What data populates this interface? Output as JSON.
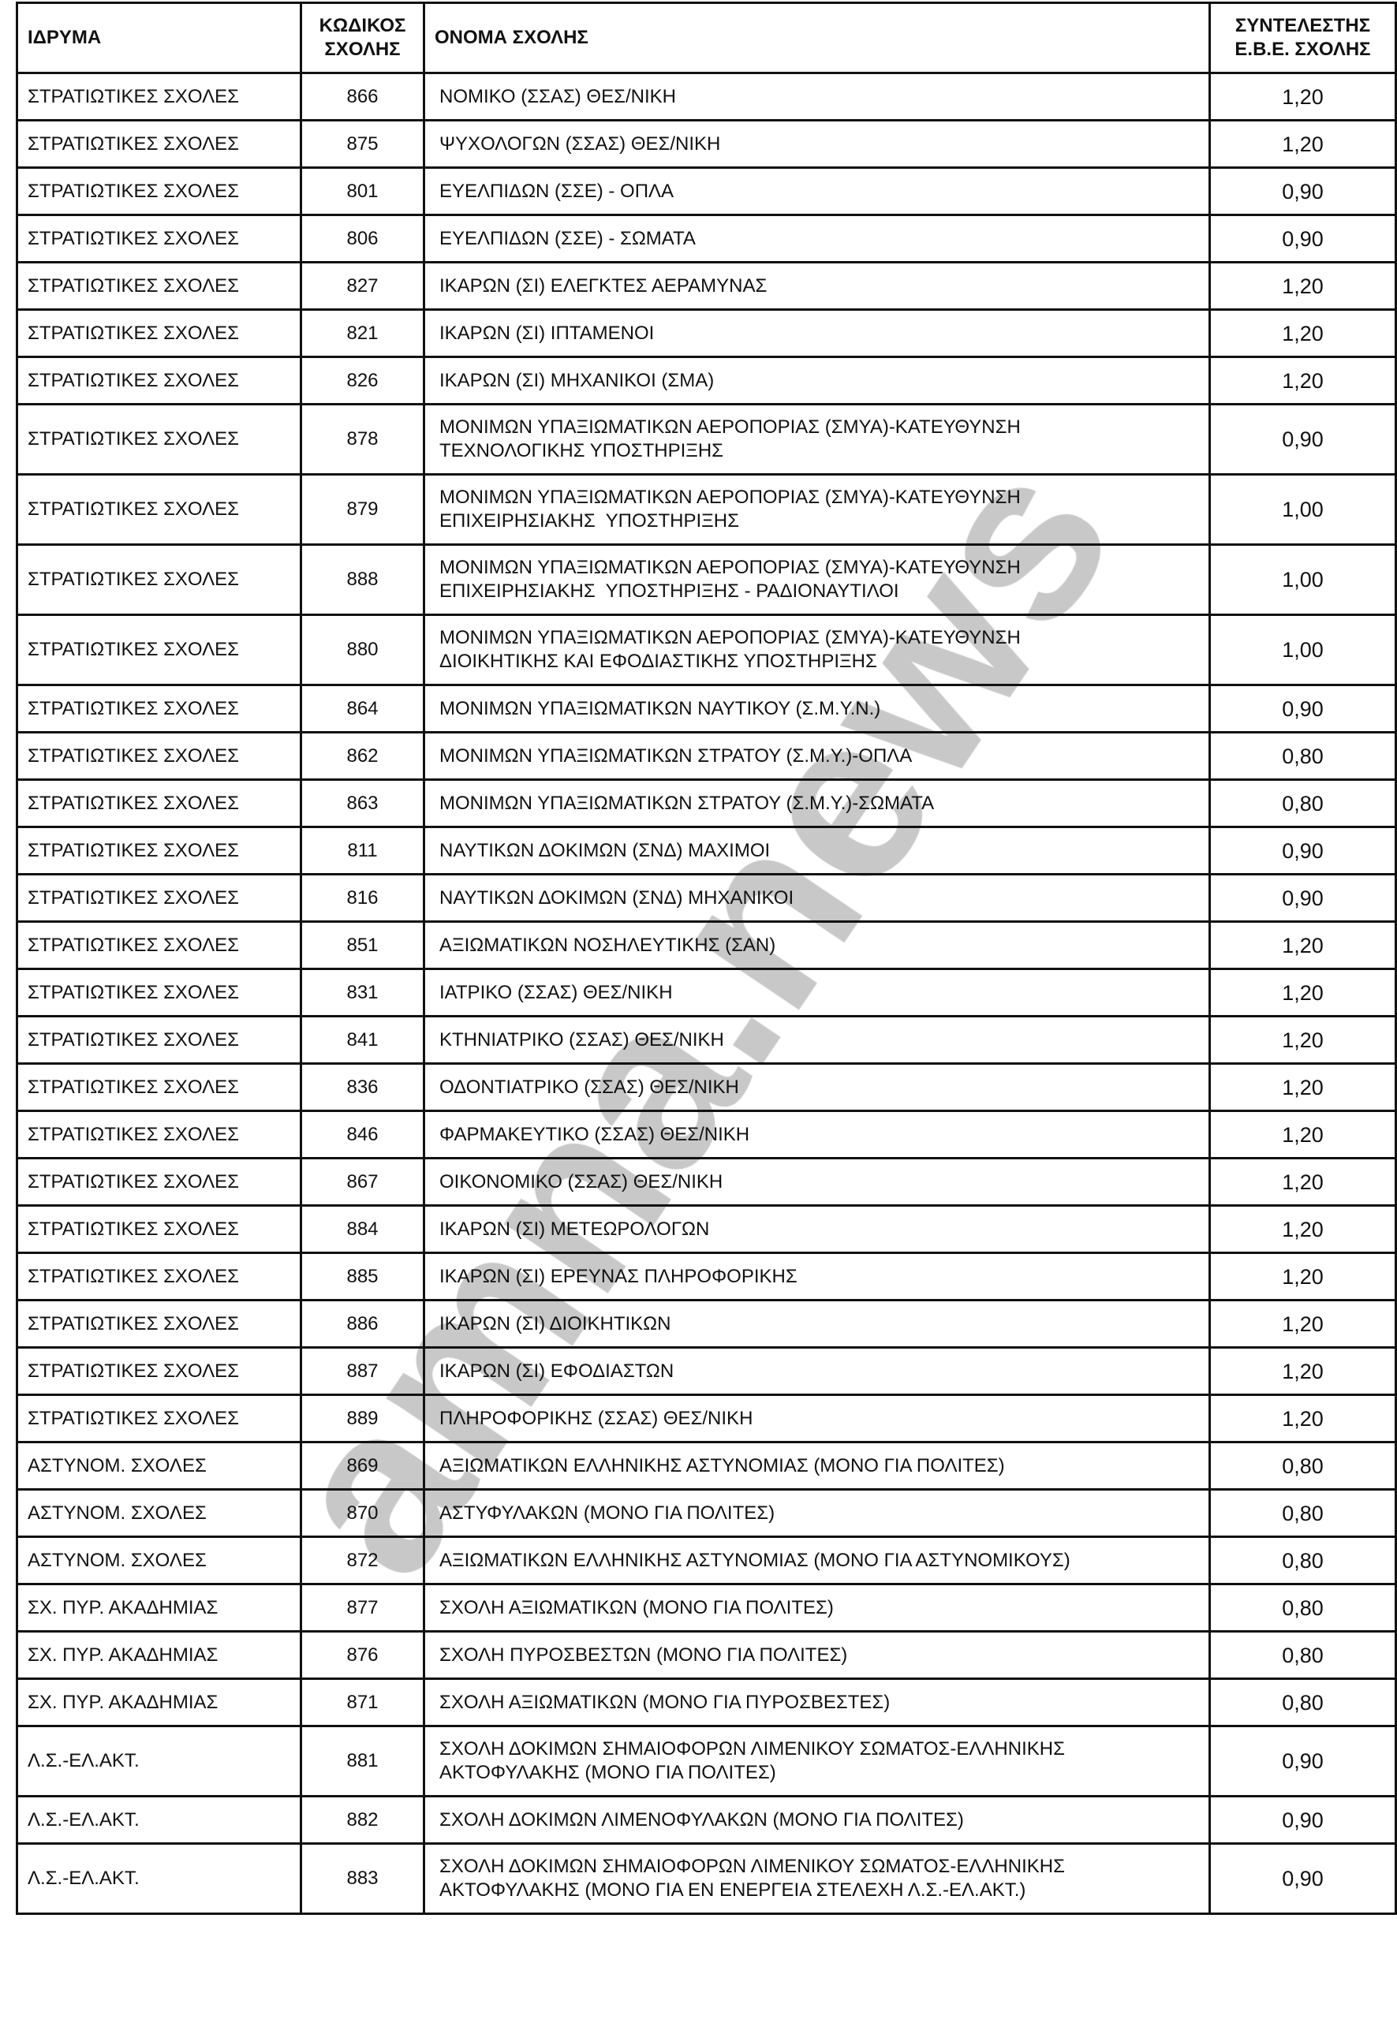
{
  "header": {
    "institution": "ΙΔΡΥΜΑ",
    "code_line1": "ΚΩΔΙΚΟΣ",
    "code_line2": "ΣΧΟΛΗΣ",
    "name": "ΟΝΟΜΑ ΣΧΟΛΗΣ",
    "coef_line1": "ΣΥΝΤΕΛΕΣΤΗΣ",
    "coef_line2": "Ε.Β.Ε. ΣΧΟΛΗΣ"
  },
  "watermark": "amna.news",
  "rows": [
    {
      "institution": "ΣΤΡΑΤΙΩΤΙΚΕΣ ΣΧΟΛΕΣ",
      "code": "866",
      "name": [
        "ΝΟΜΙΚΟ (ΣΣΑΣ) ΘΕΣ/ΝΙΚΗ"
      ],
      "coef": "1,20"
    },
    {
      "institution": "ΣΤΡΑΤΙΩΤΙΚΕΣ ΣΧΟΛΕΣ",
      "code": "875",
      "name": [
        "ΨΥΧΟΛΟΓΩΝ (ΣΣΑΣ) ΘΕΣ/ΝΙΚΗ"
      ],
      "coef": "1,20"
    },
    {
      "institution": "ΣΤΡΑΤΙΩΤΙΚΕΣ ΣΧΟΛΕΣ",
      "code": "801",
      "name": [
        "ΕΥΕΛΠΙΔΩΝ (ΣΣΕ) - ΟΠΛΑ"
      ],
      "coef": "0,90"
    },
    {
      "institution": "ΣΤΡΑΤΙΩΤΙΚΕΣ ΣΧΟΛΕΣ",
      "code": "806",
      "name": [
        "ΕΥΕΛΠΙΔΩΝ (ΣΣΕ) - ΣΩΜΑΤΑ"
      ],
      "coef": "0,90"
    },
    {
      "institution": "ΣΤΡΑΤΙΩΤΙΚΕΣ ΣΧΟΛΕΣ",
      "code": "827",
      "name": [
        "ΙΚΑΡΩΝ (ΣΙ) ΕΛΕΓΚΤΕΣ ΑΕΡΑΜΥΝΑΣ"
      ],
      "coef": "1,20"
    },
    {
      "institution": "ΣΤΡΑΤΙΩΤΙΚΕΣ ΣΧΟΛΕΣ",
      "code": "821",
      "name": [
        "ΙΚΑΡΩΝ (ΣΙ) ΙΠΤΑΜΕΝΟΙ"
      ],
      "coef": "1,20"
    },
    {
      "institution": "ΣΤΡΑΤΙΩΤΙΚΕΣ ΣΧΟΛΕΣ",
      "code": "826",
      "name": [
        "ΙΚΑΡΩΝ (ΣΙ) ΜΗΧΑΝΙΚΟΙ (ΣΜΑ)"
      ],
      "coef": "1,20"
    },
    {
      "institution": "ΣΤΡΑΤΙΩΤΙΚΕΣ ΣΧΟΛΕΣ",
      "code": "878",
      "name": [
        "ΜΟΝΙΜΩΝ ΥΠΑΞΙΩΜΑΤΙΚΩΝ ΑΕΡΟΠΟΡΙΑΣ (ΣΜΥΑ)-ΚΑΤΕΥΘΥΝΣΗ",
        "ΤΕΧΝΟΛΟΓΙΚΗΣ ΥΠΟΣΤΗΡΙΞΗΣ"
      ],
      "coef": "0,90"
    },
    {
      "institution": "ΣΤΡΑΤΙΩΤΙΚΕΣ ΣΧΟΛΕΣ",
      "code": "879",
      "name": [
        "ΜΟΝΙΜΩΝ ΥΠΑΞΙΩΜΑΤΙΚΩΝ ΑΕΡΟΠΟΡΙΑΣ (ΣΜΥΑ)-ΚΑΤΕΥΘΥΝΣΗ",
        "ΕΠΙΧΕΙΡΗΣΙΑΚΗΣ  ΥΠΟΣΤΗΡΙΞΗΣ"
      ],
      "coef": "1,00"
    },
    {
      "institution": "ΣΤΡΑΤΙΩΤΙΚΕΣ ΣΧΟΛΕΣ",
      "code": "888",
      "name": [
        "ΜΟΝΙΜΩΝ ΥΠΑΞΙΩΜΑΤΙΚΩΝ ΑΕΡΟΠΟΡΙΑΣ (ΣΜΥΑ)-ΚΑΤΕΥΘΥΝΣΗ",
        "ΕΠΙΧΕΙΡΗΣΙΑΚΗΣ  ΥΠΟΣΤΗΡΙΞΗΣ - ΡΑΔΙΟΝΑΥΤΙΛΟΙ"
      ],
      "coef": "1,00"
    },
    {
      "institution": "ΣΤΡΑΤΙΩΤΙΚΕΣ ΣΧΟΛΕΣ",
      "code": "880",
      "name": [
        "ΜΟΝΙΜΩΝ ΥΠΑΞΙΩΜΑΤΙΚΩΝ ΑΕΡΟΠΟΡΙΑΣ (ΣΜΥΑ)-ΚΑΤΕΥΘΥΝΣΗ",
        "ΔΙΟΙΚΗΤΙΚΗΣ ΚΑΙ ΕΦΟΔΙΑΣΤΙΚΗΣ ΥΠΟΣΤΗΡΙΞΗΣ"
      ],
      "coef": "1,00"
    },
    {
      "institution": "ΣΤΡΑΤΙΩΤΙΚΕΣ ΣΧΟΛΕΣ",
      "code": "864",
      "name": [
        "ΜΟΝΙΜΩΝ ΥΠΑΞΙΩΜΑΤΙΚΩΝ ΝΑΥΤΙΚΟΥ (Σ.Μ.Υ.Ν.)"
      ],
      "coef": "0,90"
    },
    {
      "institution": "ΣΤΡΑΤΙΩΤΙΚΕΣ ΣΧΟΛΕΣ",
      "code": "862",
      "name": [
        "ΜΟΝΙΜΩΝ ΥΠΑΞΙΩΜΑΤΙΚΩΝ ΣΤΡΑΤΟΥ (Σ.Μ.Υ.)-ΟΠΛΑ"
      ],
      "coef": "0,80"
    },
    {
      "institution": "ΣΤΡΑΤΙΩΤΙΚΕΣ ΣΧΟΛΕΣ",
      "code": "863",
      "name": [
        "ΜΟΝΙΜΩΝ ΥΠΑΞΙΩΜΑΤΙΚΩΝ ΣΤΡΑΤΟΥ (Σ.Μ.Υ.)-ΣΩΜΑΤΑ"
      ],
      "coef": "0,80"
    },
    {
      "institution": "ΣΤΡΑΤΙΩΤΙΚΕΣ ΣΧΟΛΕΣ",
      "code": "811",
      "name": [
        "ΝΑΥΤΙΚΩΝ ΔΟΚΙΜΩΝ (ΣΝΔ) ΜΑΧΙΜΟΙ"
      ],
      "coef": "0,90"
    },
    {
      "institution": "ΣΤΡΑΤΙΩΤΙΚΕΣ ΣΧΟΛΕΣ",
      "code": "816",
      "name": [
        "ΝΑΥΤΙΚΩΝ ΔΟΚΙΜΩΝ (ΣΝΔ) ΜΗΧΑΝΙΚΟΙ"
      ],
      "coef": "0,90"
    },
    {
      "institution": "ΣΤΡΑΤΙΩΤΙΚΕΣ ΣΧΟΛΕΣ",
      "code": "851",
      "name": [
        "ΑΞΙΩΜΑΤΙΚΩΝ ΝΟΣΗΛΕΥΤΙΚΗΣ (ΣΑΝ)"
      ],
      "coef": "1,20"
    },
    {
      "institution": "ΣΤΡΑΤΙΩΤΙΚΕΣ ΣΧΟΛΕΣ",
      "code": "831",
      "name": [
        "ΙΑΤΡΙΚΟ (ΣΣΑΣ) ΘΕΣ/ΝΙΚΗ"
      ],
      "coef": "1,20"
    },
    {
      "institution": "ΣΤΡΑΤΙΩΤΙΚΕΣ ΣΧΟΛΕΣ",
      "code": "841",
      "name": [
        "ΚΤΗΝΙΑΤΡΙΚΟ (ΣΣΑΣ) ΘΕΣ/ΝΙΚΗ"
      ],
      "coef": "1,20"
    },
    {
      "institution": "ΣΤΡΑΤΙΩΤΙΚΕΣ ΣΧΟΛΕΣ",
      "code": "836",
      "name": [
        "ΟΔΟΝΤΙΑΤΡΙΚΟ (ΣΣΑΣ) ΘΕΣ/ΝΙΚΗ"
      ],
      "coef": "1,20"
    },
    {
      "institution": "ΣΤΡΑΤΙΩΤΙΚΕΣ ΣΧΟΛΕΣ",
      "code": "846",
      "name": [
        "ΦΑΡΜΑΚΕΥΤΙΚΟ (ΣΣΑΣ) ΘΕΣ/ΝΙΚΗ"
      ],
      "coef": "1,20"
    },
    {
      "institution": "ΣΤΡΑΤΙΩΤΙΚΕΣ ΣΧΟΛΕΣ",
      "code": "867",
      "name": [
        "ΟΙΚΟΝΟΜΙΚΟ (ΣΣΑΣ) ΘΕΣ/ΝΙΚΗ"
      ],
      "coef": "1,20"
    },
    {
      "institution": "ΣΤΡΑΤΙΩΤΙΚΕΣ ΣΧΟΛΕΣ",
      "code": "884",
      "name": [
        "ΙΚΑΡΩΝ (ΣΙ) ΜΕΤΕΩΡΟΛΟΓΩΝ"
      ],
      "coef": "1,20"
    },
    {
      "institution": "ΣΤΡΑΤΙΩΤΙΚΕΣ ΣΧΟΛΕΣ",
      "code": "885",
      "name": [
        "ΙΚΑΡΩΝ (ΣΙ) ΕΡΕΥΝΑΣ ΠΛΗΡΟΦΟΡΙΚΗΣ"
      ],
      "coef": "1,20"
    },
    {
      "institution": "ΣΤΡΑΤΙΩΤΙΚΕΣ ΣΧΟΛΕΣ",
      "code": "886",
      "name": [
        "ΙΚΑΡΩΝ (ΣΙ) ΔΙΟΙΚΗΤΙΚΩΝ"
      ],
      "coef": "1,20"
    },
    {
      "institution": "ΣΤΡΑΤΙΩΤΙΚΕΣ ΣΧΟΛΕΣ",
      "code": "887",
      "name": [
        "ΙΚΑΡΩΝ (ΣΙ) ΕΦΟΔΙΑΣΤΩΝ"
      ],
      "coef": "1,20"
    },
    {
      "institution": "ΣΤΡΑΤΙΩΤΙΚΕΣ ΣΧΟΛΕΣ",
      "code": "889",
      "name": [
        "ΠΛΗΡΟΦΟΡΙΚΗΣ (ΣΣΑΣ) ΘΕΣ/ΝΙΚΗ"
      ],
      "coef": "1,20"
    },
    {
      "institution": "ΑΣΤΥΝΟΜ. ΣΧΟΛΕΣ",
      "code": "869",
      "name": [
        "ΑΞΙΩΜΑΤΙΚΩΝ ΕΛΛΗΝΙΚΗΣ ΑΣΤΥΝΟΜΙΑΣ (ΜΟΝΟ ΓΙΑ ΠΟΛΙΤΕΣ)"
      ],
      "coef": "0,80"
    },
    {
      "institution": "ΑΣΤΥΝΟΜ. ΣΧΟΛΕΣ",
      "code": "870",
      "name": [
        "ΑΣΤΥΦΥΛΑΚΩΝ (ΜΟΝΟ ΓΙΑ ΠΟΛΙΤΕΣ)"
      ],
      "coef": "0,80"
    },
    {
      "institution": "ΑΣΤΥΝΟΜ. ΣΧΟΛΕΣ",
      "code": "872",
      "name": [
        "ΑΞΙΩΜΑΤΙΚΩΝ ΕΛΛΗΝΙΚΗΣ ΑΣΤΥΝΟΜΙΑΣ (ΜΟΝΟ ΓΙΑ ΑΣΤΥΝΟΜΙΚΟΥΣ)"
      ],
      "coef": "0,80"
    },
    {
      "institution": "ΣΧ. ΠΥΡ. ΑΚΑΔΗΜΙΑΣ",
      "code": "877",
      "name": [
        "ΣΧΟΛΗ ΑΞΙΩΜΑΤΙΚΩΝ (ΜΟΝΟ ΓΙΑ ΠΟΛΙΤΕΣ)"
      ],
      "coef": "0,80"
    },
    {
      "institution": "ΣΧ. ΠΥΡ. ΑΚΑΔΗΜΙΑΣ",
      "code": "876",
      "name": [
        "ΣΧΟΛΗ ΠΥΡΟΣΒΕΣΤΩΝ (ΜΟΝΟ ΓΙΑ ΠΟΛΙΤΕΣ)"
      ],
      "coef": "0,80"
    },
    {
      "institution": "ΣΧ. ΠΥΡ. ΑΚΑΔΗΜΙΑΣ",
      "code": "871",
      "name": [
        "ΣΧΟΛΗ ΑΞΙΩΜΑΤΙΚΩΝ (ΜΟΝΟ ΓΙΑ ΠΥΡΟΣΒΕΣΤΕΣ)"
      ],
      "coef": "0,80"
    },
    {
      "institution": "Λ.Σ.-ΕΛ.ΑΚΤ.",
      "code": "881",
      "name": [
        "ΣΧΟΛΗ ΔΟΚΙΜΩΝ ΣΗΜΑΙΟΦΟΡΩΝ ΛΙΜΕΝΙΚΟΥ ΣΩΜΑΤΟΣ-ΕΛΛΗΝΙΚΗΣ",
        "ΑΚΤΟΦΥΛΑΚΗΣ (ΜΟΝΟ ΓΙΑ ΠΟΛΙΤΕΣ)"
      ],
      "coef": "0,90"
    },
    {
      "institution": "Λ.Σ.-ΕΛ.ΑΚΤ.",
      "code": "882",
      "name": [
        "ΣΧΟΛΗ ΔΟΚΙΜΩΝ ΛΙΜΕΝΟΦΥΛΑΚΩΝ (ΜΟΝΟ ΓΙΑ ΠΟΛΙΤΕΣ)"
      ],
      "coef": "0,90"
    },
    {
      "institution": "Λ.Σ.-ΕΛ.ΑΚΤ.",
      "code": "883",
      "name": [
        "ΣΧΟΛΗ ΔΟΚΙΜΩΝ ΣΗΜΑΙΟΦΟΡΩΝ ΛΙΜΕΝΙΚΟΥ ΣΩΜΑΤΟΣ-ΕΛΛΗΝΙΚΗΣ",
        "ΑΚΤΟΦΥΛΑΚΗΣ (ΜΟΝΟ ΓΙΑ ΕΝ ΕΝΕΡΓΕΙΑ ΣΤΕΛΕΧΗ Λ.Σ.-ΕΛ.ΑΚΤ.)"
      ],
      "coef": "0,90"
    }
  ]
}
